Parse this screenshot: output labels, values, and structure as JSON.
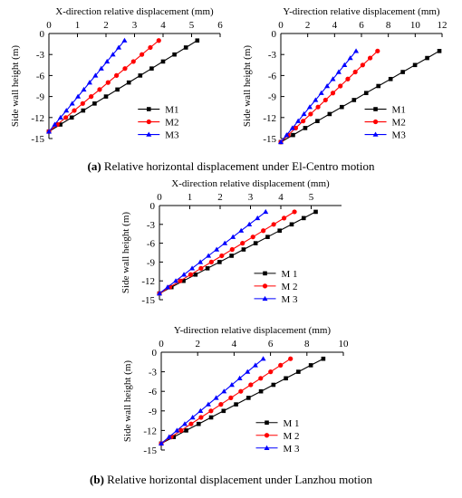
{
  "captions": {
    "a_tag": "(a)",
    "a_text": " Relative horizontal displacement under El-Centro motion",
    "b_tag": "(b)",
    "b_text": " Relative horizontal displacement under Lanzhou motion"
  },
  "colors": {
    "M1": "#000000",
    "M2": "#ff0000",
    "M3": "#0000ff"
  },
  "chart_data": [
    {
      "id": "a-x",
      "type": "line",
      "xlabel": "X-direction   relative displacement (mm)",
      "ylabel": "Side wall height (m)",
      "xlim": [
        0,
        6
      ],
      "xticks": [
        0,
        1,
        2,
        3,
        4,
        5,
        6
      ],
      "ylim": [
        -15,
        0
      ],
      "yticks": [
        0,
        -3,
        -6,
        -9,
        -12,
        -15
      ],
      "legend": "bottom-right",
      "series": [
        {
          "name": "M1",
          "marker": "square",
          "x": [
            0,
            5.2
          ],
          "y": [
            -14,
            -1
          ]
        },
        {
          "name": "M2",
          "marker": "circle",
          "x": [
            0,
            3.85
          ],
          "y": [
            -14,
            -1
          ]
        },
        {
          "name": "M3",
          "marker": "triangle",
          "x": [
            0,
            2.65
          ],
          "y": [
            -14,
            -1
          ]
        }
      ]
    },
    {
      "id": "a-y",
      "type": "line",
      "xlabel": "Y-direction   relative displacement (mm)",
      "ylabel": "Side wall height (m)",
      "xlim": [
        0,
        12
      ],
      "xticks": [
        0,
        2,
        4,
        6,
        8,
        10,
        12
      ],
      "ylim": [
        -15,
        0
      ],
      "yticks": [
        0,
        -3,
        -6,
        -9,
        -12,
        -15
      ],
      "legend": "bottom-right",
      "series": [
        {
          "name": "M1",
          "marker": "square",
          "x": [
            0,
            11.8
          ],
          "y": [
            -15.5,
            -2.5
          ]
        },
        {
          "name": "M2",
          "marker": "circle",
          "x": [
            0,
            7.2
          ],
          "y": [
            -15.5,
            -2.5
          ]
        },
        {
          "name": "M3",
          "marker": "triangle",
          "x": [
            0,
            5.6
          ],
          "y": [
            -15.5,
            -2.5
          ]
        }
      ]
    },
    {
      "id": "b-x",
      "type": "line",
      "xlabel": "X-direction relative displacement (mm)",
      "ylabel": "Side wall height (m)",
      "xlim": [
        0,
        6
      ],
      "xticks": [
        0,
        1,
        2,
        3,
        4,
        5
      ],
      "ylim": [
        -15,
        0
      ],
      "yticks": [
        0,
        -3,
        -6,
        -9,
        -12,
        -15
      ],
      "legend": "bottom-right",
      "series": [
        {
          "name": "M 1",
          "marker": "square",
          "x": [
            0,
            5.15
          ],
          "y": [
            -14,
            -1
          ]
        },
        {
          "name": "M 2",
          "marker": "circle",
          "x": [
            0,
            4.45
          ],
          "y": [
            -14,
            -1
          ]
        },
        {
          "name": "M 3",
          "marker": "triangle",
          "x": [
            0,
            3.5
          ],
          "y": [
            -14,
            -1
          ]
        }
      ]
    },
    {
      "id": "b-y",
      "type": "line",
      "xlabel": "Y-direction  relative displacement (mm)",
      "ylabel": "Side wall height (m)",
      "xlim": [
        0,
        10
      ],
      "xticks": [
        0,
        2,
        4,
        6,
        8,
        10
      ],
      "ylim": [
        -15,
        0
      ],
      "yticks": [
        0,
        -3,
        -6,
        -9,
        -12,
        -15
      ],
      "legend": "bottom-right",
      "series": [
        {
          "name": "M 1",
          "marker": "square",
          "x": [
            0,
            8.9
          ],
          "y": [
            -14,
            -1
          ]
        },
        {
          "name": "M 2",
          "marker": "circle",
          "x": [
            0,
            7.1
          ],
          "y": [
            -14,
            -1
          ]
        },
        {
          "name": "M 3",
          "marker": "triangle",
          "x": [
            0,
            5.6
          ],
          "y": [
            -14,
            -1
          ]
        }
      ]
    }
  ]
}
